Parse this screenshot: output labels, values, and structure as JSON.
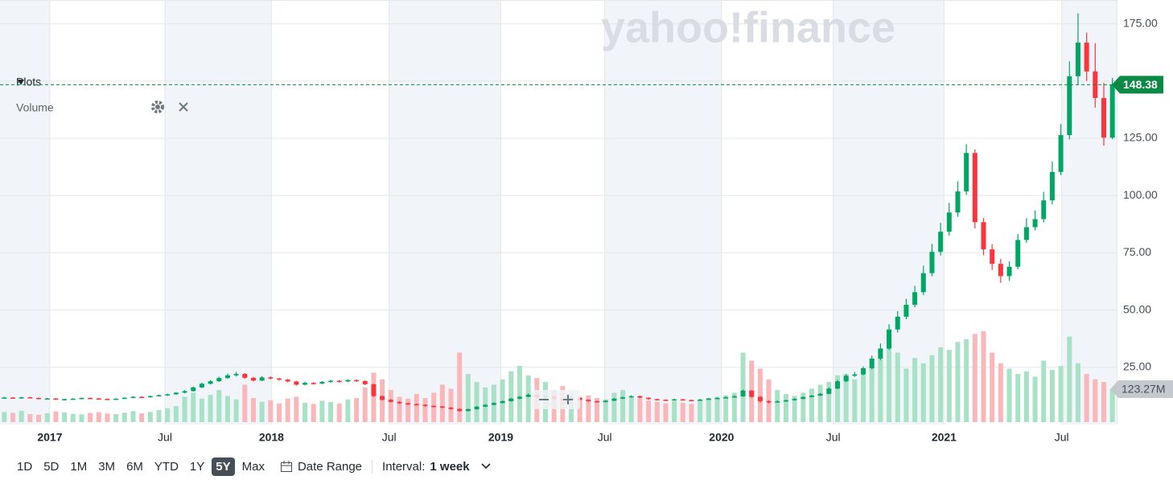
{
  "chart_data": {
    "type": "candlestick",
    "watermark": "yahoo!finance",
    "open": [
      11.6,
      11.8,
      11.5,
      11.9,
      11.6,
      11.2,
      11.4,
      10.9,
      11.1,
      11.3,
      11.6,
      11.4,
      11.2,
      10.9,
      11.3,
      11.7,
      12.1,
      12.0,
      12.4,
      12.8,
      13.2,
      13.9,
      14.6,
      16.2,
      17.8,
      18.9,
      20.3,
      21.5,
      22.1,
      20.4,
      19.2,
      20.6,
      20.1,
      19.6,
      18.8,
      17.4,
      18.2,
      17.9,
      18.6,
      19.1,
      18.8,
      19.4,
      19.0,
      17.6,
      12.4,
      10.8,
      9.9,
      9.3,
      8.9,
      8.6,
      8.1,
      7.9,
      7.4,
      6.8,
      5.9,
      6.7,
      7.8,
      8.6,
      9.4,
      10.2,
      11.3,
      12.1,
      13.0,
      11.8,
      12.4,
      11.2,
      10.9,
      11.6,
      10.8,
      10.2,
      9.8,
      10.4,
      11.3,
      11.9,
      12.4,
      11.7,
      11.1,
      10.8,
      10.6,
      11.0,
      10.7,
      10.5,
      10.9,
      11.3,
      11.6,
      11.9,
      12.3,
      14.8,
      12.1,
      10.2,
      9.8,
      10.1,
      10.6,
      11.2,
      12.0,
      12.6,
      13.4,
      15.7,
      18.9,
      21.3,
      21.9,
      24.6,
      28.8,
      33.2,
      41.5,
      47.1,
      52.3,
      57.8,
      66.1,
      75.4,
      84.2,
      92.6,
      101.8,
      118.6,
      88.4,
      76.5,
      70.2,
      64.8,
      68.9,
      80.6,
      86.2,
      89.7,
      97.9,
      110.3,
      126.4,
      152.1,
      166.8,
      154.2,
      142.6,
      125.3
    ],
    "high": [
      12.1,
      12.0,
      12.1,
      12.1,
      11.8,
      11.6,
      11.5,
      11.3,
      11.5,
      11.8,
      11.8,
      11.6,
      11.4,
      11.5,
      11.9,
      12.4,
      12.4,
      12.7,
      13.1,
      13.5,
      14.2,
      15.0,
      16.6,
      18.3,
      19.4,
      20.9,
      22.3,
      23.0,
      22.5,
      20.8,
      21.1,
      21.0,
      20.4,
      19.9,
      19.1,
      18.6,
      18.5,
      19.0,
      19.5,
      19.5,
      19.8,
      19.7,
      19.3,
      17.8,
      12.7,
      11.1,
      10.2,
      9.6,
      9.2,
      8.9,
      8.4,
      8.1,
      7.6,
      7.0,
      7.0,
      8.1,
      8.9,
      9.7,
      10.5,
      11.7,
      12.5,
      13.6,
      13.3,
      12.8,
      12.6,
      11.5,
      11.9,
      11.8,
      11.0,
      10.4,
      10.7,
      11.6,
      12.2,
      12.8,
      12.6,
      11.9,
      11.3,
      11.0,
      11.3,
      11.2,
      10.9,
      11.2,
      11.6,
      11.9,
      12.3,
      12.8,
      15.3,
      15.1,
      12.4,
      10.6,
      10.5,
      10.9,
      11.5,
      12.3,
      13.0,
      13.8,
      16.2,
      19.5,
      22.0,
      23.0,
      25.4,
      30.1,
      35.4,
      43.8,
      49.5,
      54.9,
      60.6,
      69.4,
      78.9,
      88.1,
      96.8,
      106.2,
      122.4,
      120.1,
      90.2,
      78.8,
      72.4,
      71.3,
      83.2,
      90.1,
      93.5,
      101.6,
      114.8,
      131.2,
      158.6,
      179.6,
      171.2,
      166.5,
      149.2,
      151.4
    ],
    "low": [
      11.4,
      11.3,
      11.3,
      11.4,
      11.0,
      11.0,
      10.7,
      10.7,
      10.9,
      11.1,
      11.2,
      11.0,
      10.7,
      10.7,
      11.1,
      11.5,
      11.8,
      11.8,
      12.2,
      12.5,
      13.0,
      13.6,
      14.4,
      15.9,
      17.5,
      18.6,
      20.0,
      21.0,
      19.9,
      18.8,
      18.9,
      19.7,
      19.1,
      18.4,
      17.0,
      17.1,
      17.4,
      17.6,
      18.3,
      18.4,
      18.5,
      18.6,
      17.2,
      12.0,
      10.5,
      9.6,
      9.0,
      8.6,
      8.3,
      7.8,
      7.6,
      7.1,
      6.5,
      5.6,
      5.7,
      6.5,
      7.6,
      8.4,
      9.2,
      10.0,
      11.0,
      11.9,
      11.5,
      11.6,
      10.9,
      10.6,
      10.7,
      10.5,
      9.9,
      9.5,
      9.6,
      10.2,
      11.1,
      11.7,
      11.4,
      10.8,
      10.5,
      10.3,
      10.4,
      10.5,
      10.3,
      10.3,
      10.7,
      11.1,
      11.4,
      11.7,
      12.1,
      11.7,
      9.6,
      9.2,
      9.5,
      9.9,
      10.4,
      11.0,
      11.8,
      12.4,
      13.2,
      15.4,
      18.5,
      20.8,
      21.5,
      24.0,
      28.1,
      32.6,
      40.2,
      46.0,
      51.2,
      56.5,
      64.7,
      73.8,
      82.5,
      90.7,
      100.3,
      85.6,
      73.9,
      67.5,
      61.9,
      62.7,
      67.8,
      79.4,
      84.8,
      88.3,
      96.2,
      108.9,
      124.5,
      148.3,
      150.1,
      138.4,
      121.8,
      124.6
    ],
    "close": [
      11.8,
      11.5,
      11.9,
      11.6,
      11.2,
      11.4,
      10.9,
      11.1,
      11.3,
      11.6,
      11.4,
      11.2,
      10.9,
      11.3,
      11.7,
      12.1,
      12.0,
      12.4,
      12.8,
      13.2,
      13.9,
      14.6,
      16.2,
      17.8,
      18.9,
      20.3,
      21.5,
      22.1,
      20.4,
      19.2,
      20.6,
      20.1,
      19.6,
      18.8,
      17.4,
      18.2,
      17.9,
      18.6,
      19.1,
      18.8,
      19.4,
      19.0,
      17.6,
      12.4,
      10.8,
      9.9,
      9.3,
      8.9,
      8.6,
      8.1,
      7.9,
      7.4,
      6.8,
      5.9,
      6.7,
      7.8,
      8.6,
      9.4,
      10.2,
      11.3,
      12.1,
      13.0,
      11.8,
      12.4,
      11.2,
      10.9,
      11.6,
      10.8,
      10.2,
      9.8,
      10.4,
      11.3,
      11.9,
      12.4,
      11.7,
      11.1,
      10.8,
      10.6,
      11.0,
      10.7,
      10.5,
      10.9,
      11.3,
      11.6,
      11.9,
      12.3,
      14.8,
      12.1,
      10.2,
      9.8,
      10.1,
      10.6,
      11.2,
      12.0,
      12.6,
      13.4,
      15.7,
      18.9,
      21.3,
      21.9,
      24.6,
      28.8,
      33.2,
      41.5,
      47.1,
      52.3,
      57.8,
      66.1,
      75.4,
      84.2,
      92.6,
      101.8,
      118.6,
      88.4,
      76.5,
      70.2,
      64.8,
      68.9,
      80.6,
      86.2,
      89.7,
      97.9,
      110.3,
      126.4,
      152.1,
      166.8,
      154.2,
      142.6,
      125.3,
      148.38
    ],
    "volume": {
      "name": "Volume",
      "values": [
        38,
        35,
        42,
        30,
        28,
        33,
        40,
        36,
        31,
        29,
        34,
        37,
        32,
        30,
        35,
        41,
        33,
        38,
        45,
        52,
        60,
        95,
        110,
        88,
        102,
        120,
        98,
        85,
        140,
        90,
        76,
        82,
        70,
        88,
        95,
        72,
        68,
        80,
        75,
        70,
        85,
        90,
        130,
        185,
        160,
        120,
        95,
        88,
        105,
        90,
        110,
        140,
        125,
        260,
        180,
        150,
        130,
        140,
        160,
        190,
        210,
        175,
        165,
        150,
        120,
        135,
        110,
        95,
        100,
        90,
        85,
        110,
        120,
        95,
        88,
        80,
        75,
        70,
        78,
        72,
        68,
        82,
        90,
        95,
        100,
        110,
        260,
        230,
        200,
        160,
        120,
        105,
        98,
        110,
        125,
        140,
        150,
        175,
        180,
        160,
        190,
        210,
        240,
        330,
        260,
        200,
        240,
        220,
        250,
        280,
        270,
        300,
        310,
        330,
        340,
        260,
        220,
        200,
        180,
        190,
        170,
        230,
        195,
        210,
        320,
        220,
        180,
        160,
        150,
        123.27
      ],
      "last_label": "123.27M",
      "lim": [
        0,
        400
      ]
    },
    "ylim": [
      0,
      185.4
    ],
    "yticks": [
      {
        "value": 25,
        "label": "25.00"
      },
      {
        "value": 50,
        "label": "50.00"
      },
      {
        "value": 75,
        "label": "75.00"
      },
      {
        "value": 100,
        "label": "100.00"
      },
      {
        "value": 125,
        "label": "125.00"
      },
      {
        "value": 150,
        "label": "150.00"
      },
      {
        "value": 175,
        "label": "175.00"
      }
    ],
    "xlim": [
      -0.5,
      129.5
    ],
    "xticks": [
      {
        "value": 5.3,
        "label": "2017"
      },
      {
        "value": 18.7,
        "label": "Jul"
      },
      {
        "value": 31.1,
        "label": "2018"
      },
      {
        "value": 44.8,
        "label": "Jul"
      },
      {
        "value": 57.8,
        "label": "2019"
      },
      {
        "value": 69.9,
        "label": "Jul"
      },
      {
        "value": 83.5,
        "label": "2020"
      },
      {
        "value": 96.5,
        "label": "Jul"
      },
      {
        "value": 109.4,
        "label": "2021"
      },
      {
        "value": 123.1,
        "label": "Jul"
      }
    ],
    "up_color": "#00a764",
    "down_color": "#ff333a",
    "up_volume_color": "#a8e2c6",
    "down_volume_color": "#f9b7ba",
    "last_price_color": "#0b8a45",
    "grid": true
  },
  "plots_panel": {
    "title": "Plots",
    "items": [
      "Volume"
    ]
  },
  "toolbar": {
    "ranges": [
      {
        "label": "1D",
        "selected": false
      },
      {
        "label": "5D",
        "selected": false
      },
      {
        "label": "1M",
        "selected": false
      },
      {
        "label": "3M",
        "selected": false
      },
      {
        "label": "6M",
        "selected": false
      },
      {
        "label": "YTD",
        "selected": false
      },
      {
        "label": "1Y",
        "selected": false
      },
      {
        "label": "5Y",
        "selected": true
      },
      {
        "label": "Max",
        "selected": false
      }
    ],
    "date_range": "Date Range",
    "interval_label": "Interval:",
    "interval": "1 week"
  }
}
